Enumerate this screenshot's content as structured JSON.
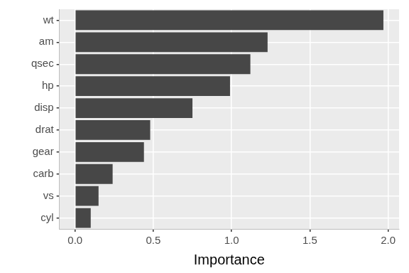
{
  "chart_data": {
    "type": "bar",
    "orientation": "horizontal",
    "categories": [
      "wt",
      "am",
      "qsec",
      "hp",
      "disp",
      "drat",
      "gear",
      "carb",
      "vs",
      "cyl"
    ],
    "values": [
      1.97,
      1.23,
      1.12,
      0.99,
      0.75,
      0.48,
      0.44,
      0.24,
      0.15,
      0.1
    ],
    "color": "#474747",
    "xlabel": "Importance",
    "xlim": [
      -0.1,
      2.07
    ],
    "xticks": [
      {
        "value": 0,
        "label": "0.0"
      },
      {
        "value": 0.5,
        "label": "0.5"
      },
      {
        "value": 1,
        "label": "1.0"
      },
      {
        "value": 1.5,
        "label": "1.5"
      },
      {
        "value": 2,
        "label": "2.0"
      }
    ],
    "grid": true
  }
}
